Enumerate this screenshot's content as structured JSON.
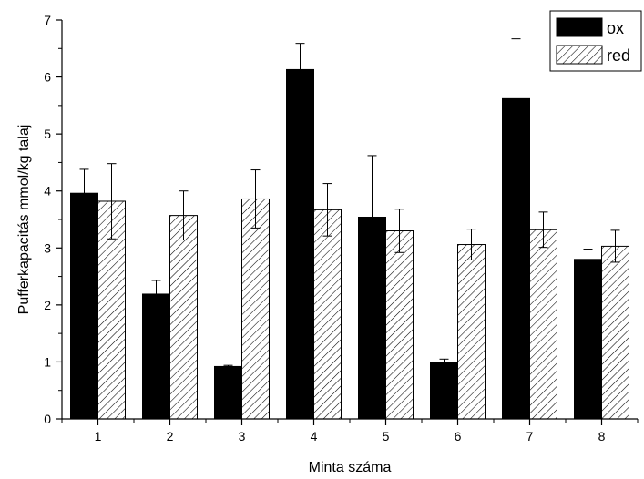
{
  "chart_data": {
    "type": "bar",
    "xlabel": "Minta száma",
    "ylabel": "Pufferkapacitás mmol/kg talaj",
    "categories": [
      "1",
      "2",
      "3",
      "4",
      "5",
      "6",
      "7",
      "8"
    ],
    "ylim": [
      0,
      7
    ],
    "yticks": [
      "0",
      "1",
      "2",
      "3",
      "4",
      "5",
      "6",
      "7"
    ],
    "grid": false,
    "legend_position": "top-right",
    "error_bars": true,
    "series": [
      {
        "name": "ox",
        "fill": "solid",
        "color": "#000000",
        "values": [
          3.96,
          2.19,
          0.92,
          6.13,
          3.54,
          0.99,
          5.62,
          2.8
        ],
        "errors": [
          0.42,
          0.24,
          0.02,
          0.46,
          1.08,
          0.06,
          1.05,
          0.18
        ]
      },
      {
        "name": "red",
        "fill": "hatched",
        "color": "#000000",
        "values": [
          3.82,
          3.57,
          3.86,
          3.67,
          3.3,
          3.06,
          3.32,
          3.03
        ],
        "errors": [
          0.66,
          0.43,
          0.51,
          0.46,
          0.38,
          0.27,
          0.31,
          0.28
        ]
      }
    ]
  }
}
